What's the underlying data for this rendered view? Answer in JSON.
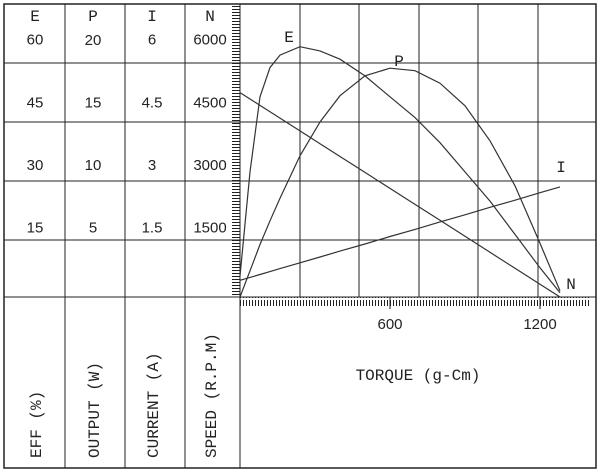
{
  "chart_data": {
    "type": "line",
    "xlabel": "TORQUE (g-Cm)",
    "xlim": [
      0,
      1400
    ],
    "xticks": [
      600,
      1200
    ],
    "x": [
      0,
      40,
      80,
      120,
      160,
      240,
      320,
      400,
      500,
      600,
      700,
      800,
      900,
      1000,
      1100,
      1200,
      1280
    ],
    "series": [
      {
        "name": "E",
        "label": "EFF (%)",
        "color": "#333333",
        "lim": [
          0,
          70
        ],
        "ticks": [
          15,
          30,
          45,
          60
        ],
        "values": [
          5,
          30,
          48,
          55,
          58,
          60,
          59,
          57,
          53,
          48,
          43,
          37,
          30,
          23,
          15,
          7,
          1
        ]
      },
      {
        "name": "P",
        "label": "OUTPUT (W)",
        "color": "#333333",
        "lim": [
          0,
          23.36
        ],
        "ticks": [
          5,
          10,
          15,
          20
        ],
        "values": [
          0,
          2.1,
          4.2,
          6.1,
          7.9,
          11.3,
          14.0,
          16.1,
          17.7,
          18.3,
          18.1,
          17.1,
          15.3,
          12.5,
          8.9,
          4.3,
          0.5
        ]
      },
      {
        "name": "I",
        "label": "CURRENT (A)",
        "color": "#333333",
        "lim": [
          0,
          7
        ],
        "ticks": [
          1.5,
          3,
          4.5,
          6
        ],
        "values": [
          0.4,
          0.47,
          0.54,
          0.61,
          0.68,
          0.82,
          0.96,
          1.1,
          1.27,
          1.45,
          1.62,
          1.8,
          1.97,
          2.15,
          2.32,
          2.5,
          2.64
        ]
      },
      {
        "name": "N",
        "label": "SPEED (R.P.M)",
        "color": "#333333",
        "lim": [
          0,
          7000
        ],
        "ticks": [
          1500,
          3000,
          4500,
          6000
        ],
        "values": [
          4900,
          4747,
          4594,
          4441,
          4288,
          3981,
          3675,
          3369,
          2986,
          2603,
          2220,
          1838,
          1455,
          1072,
          689,
          306,
          0
        ]
      }
    ]
  }
}
